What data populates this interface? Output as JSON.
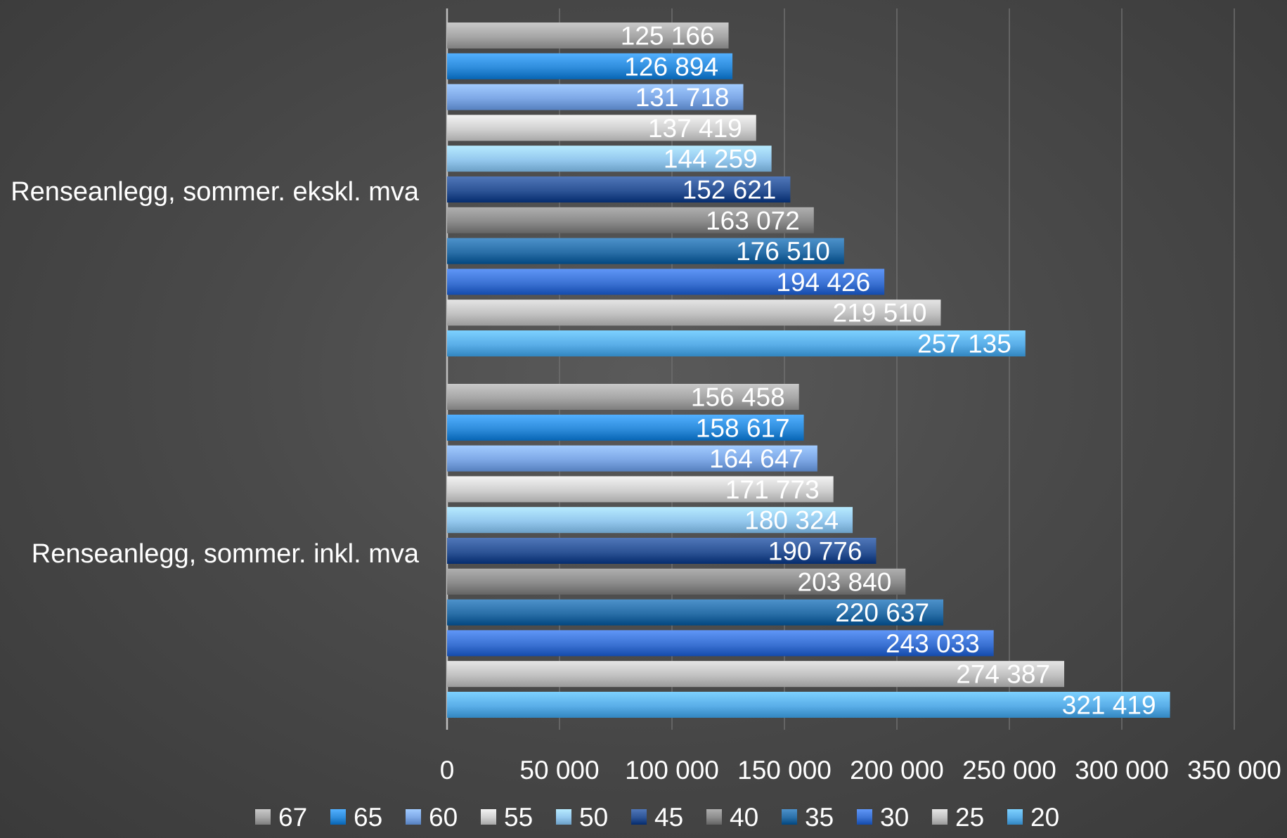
{
  "chart_data": {
    "type": "bar",
    "orientation": "horizontal",
    "categories": [
      "Renseanlegg, sommer. ekskl. mva",
      "Renseanlegg, sommer. inkl. mva"
    ],
    "series": [
      {
        "name": "67",
        "color": "#a6a6a6",
        "values": [
          125166,
          156458
        ],
        "labels": [
          "125 166",
          "156 458"
        ]
      },
      {
        "name": "65",
        "color": "#2f8ddc",
        "values": [
          126894,
          158617
        ],
        "labels": [
          "126 894",
          "158 617"
        ]
      },
      {
        "name": "60",
        "color": "#7ea8e6",
        "values": [
          131718,
          164647
        ],
        "labels": [
          "131 718",
          "164 647"
        ]
      },
      {
        "name": "55",
        "color": "#d0d0d0",
        "values": [
          137419,
          171773
        ],
        "labels": [
          "137 419",
          "171 773"
        ]
      },
      {
        "name": "50",
        "color": "#94c8ee",
        "values": [
          144259,
          180324
        ],
        "labels": [
          "144 259",
          "180 324"
        ]
      },
      {
        "name": "45",
        "color": "#2d5496",
        "values": [
          152621,
          190776
        ],
        "labels": [
          "152 621",
          "190 776"
        ]
      },
      {
        "name": "40",
        "color": "#8c8c8c",
        "values": [
          163072,
          203840
        ],
        "labels": [
          "163 072",
          "203 840"
        ]
      },
      {
        "name": "35",
        "color": "#2a6fa8",
        "values": [
          176510,
          220637
        ],
        "labels": [
          "176 510",
          "220 637"
        ]
      },
      {
        "name": "30",
        "color": "#3c73d4",
        "values": [
          194426,
          243033
        ],
        "labels": [
          "194 426",
          "243 033"
        ]
      },
      {
        "name": "25",
        "color": "#c2c2c2",
        "values": [
          219510,
          274387
        ],
        "labels": [
          "219 510",
          "274 387"
        ]
      },
      {
        "name": "20",
        "color": "#5aaee8",
        "values": [
          257135,
          321419
        ],
        "labels": [
          "257 135",
          "321 419"
        ]
      }
    ],
    "xlim": [
      0,
      350000
    ],
    "x_ticks": [
      0,
      50000,
      100000,
      150000,
      200000,
      250000,
      300000,
      350000
    ],
    "x_tick_labels": [
      "0",
      "50 000",
      "100 000",
      "150 000",
      "200 000",
      "250 000",
      "300 000",
      "350 000"
    ],
    "grid": "vertical",
    "legend": "bottom",
    "title": "",
    "xlabel": "",
    "ylabel": ""
  }
}
